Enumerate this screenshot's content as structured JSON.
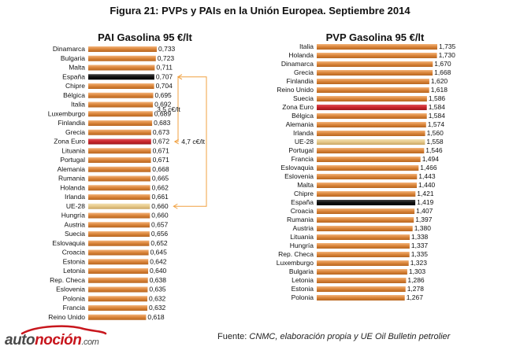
{
  "figure_title": "Figura 21: PVPs y PAIs en la Unión Europea. Septiembre 2014",
  "source_label": "Fuente:",
  "source_text": "CNMC, elaboración propia y UE Oil Bulletin petrolier",
  "brand": {
    "part1": "auto",
    "part2": "noción",
    "part3": ".com"
  },
  "colors": {
    "bar": "#d9843a",
    "bar_light": "#f1b27a",
    "spain": "#111111",
    "euro_zone": "#c9252b",
    "eu28": "#e6c98a",
    "bracket": "#f0a040"
  },
  "chart_data": [
    {
      "type": "bar",
      "orientation": "horizontal",
      "title": "PAI Gasolina 95 €/lt",
      "categories": [
        "Dinamarca",
        "Bulgaria",
        "Malta",
        "España",
        "Chipre",
        "Bélgica",
        "Italia",
        "Luxemburgo",
        "Finlandia",
        "Grecia",
        "Zona Euro",
        "Lituania",
        "Portugal",
        "Alemania",
        "Rumania",
        "Holanda",
        "Irlanda",
        "UE-28",
        "Hungría",
        "Austria",
        "Suecia",
        "Eslovaquia",
        "Croacia",
        "Estonia",
        "Letonia",
        "Rep. Checa",
        "Eslovenia",
        "Polonia",
        "Francia",
        "Reino Unido"
      ],
      "values": [
        0.733,
        0.723,
        0.711,
        0.707,
        0.704,
        0.695,
        0.692,
        0.689,
        0.683,
        0.673,
        0.672,
        0.671,
        0.671,
        0.668,
        0.665,
        0.662,
        0.661,
        0.66,
        0.66,
        0.657,
        0.656,
        0.652,
        0.645,
        0.642,
        0.64,
        0.638,
        0.635,
        0.632,
        0.632,
        0.618
      ],
      "value_labels": [
        "0,733",
        "0,723",
        "0,711",
        "0,707",
        "0,704",
        "0,695",
        "0,692",
        "0,689",
        "0,683",
        "0,673",
        "0,672",
        "0,671",
        "0,671",
        "0,668",
        "0,665",
        "0,662",
        "0,661",
        "0,660",
        "0,660",
        "0,657",
        "0,656",
        "0,652",
        "0,645",
        "0,642",
        "0,640",
        "0,638",
        "0,635",
        "0,632",
        "0,632",
        "0,618"
      ],
      "highlight": {
        "España": "spain",
        "Zona Euro": "euro_zone",
        "UE-28": "eu28"
      },
      "annotations": [
        {
          "from": "España",
          "to": "Zona Euro",
          "label": "3,5 c€/lt"
        },
        {
          "from": "España",
          "to": "UE-28",
          "label": "4,7 c€/lt"
        }
      ]
    },
    {
      "type": "bar",
      "orientation": "horizontal",
      "title": "PVP Gasolina 95 €/lt",
      "categories": [
        "Italia",
        "Holanda",
        "Dinamarca",
        "Grecia",
        "Finlandia",
        "Reino Unido",
        "Suecia",
        "Zona Euro",
        "Bélgica",
        "Alemania",
        "Irlanda",
        "UE-28",
        "Portugal",
        "Francia",
        "Eslovaquia",
        "Eslovenia",
        "Malta",
        "Chipre",
        "España",
        "Croacia",
        "Rumania",
        "Austria",
        "Lituania",
        "Hungría",
        "Rep. Checa",
        "Luxemburgo",
        "Bulgaria",
        "Letonia",
        "Estonia",
        "Polonia"
      ],
      "values": [
        1.735,
        1.73,
        1.67,
        1.668,
        1.62,
        1.618,
        1.586,
        1.584,
        1.584,
        1.574,
        1.56,
        1.558,
        1.546,
        1.494,
        1.466,
        1.443,
        1.44,
        1.421,
        1.419,
        1.407,
        1.397,
        1.38,
        1.338,
        1.337,
        1.335,
        1.323,
        1.303,
        1.286,
        1.278,
        1.267
      ],
      "value_labels": [
        "1,735",
        "1,730",
        "1,670",
        "1,668",
        "1,620",
        "1,618",
        "1,586",
        "1,584",
        "1,584",
        "1,574",
        "1,560",
        "1,558",
        "1,546",
        "1,494",
        "1,466",
        "1,443",
        "1,440",
        "1,421",
        "1,419",
        "1,407",
        "1,397",
        "1,380",
        "1,338",
        "1,337",
        "1,335",
        "1,323",
        "1,303",
        "1,286",
        "1,278",
        "1,267"
      ],
      "highlight": {
        "España": "spain",
        "Zona Euro": "euro_zone",
        "UE-28": "eu28"
      }
    }
  ]
}
